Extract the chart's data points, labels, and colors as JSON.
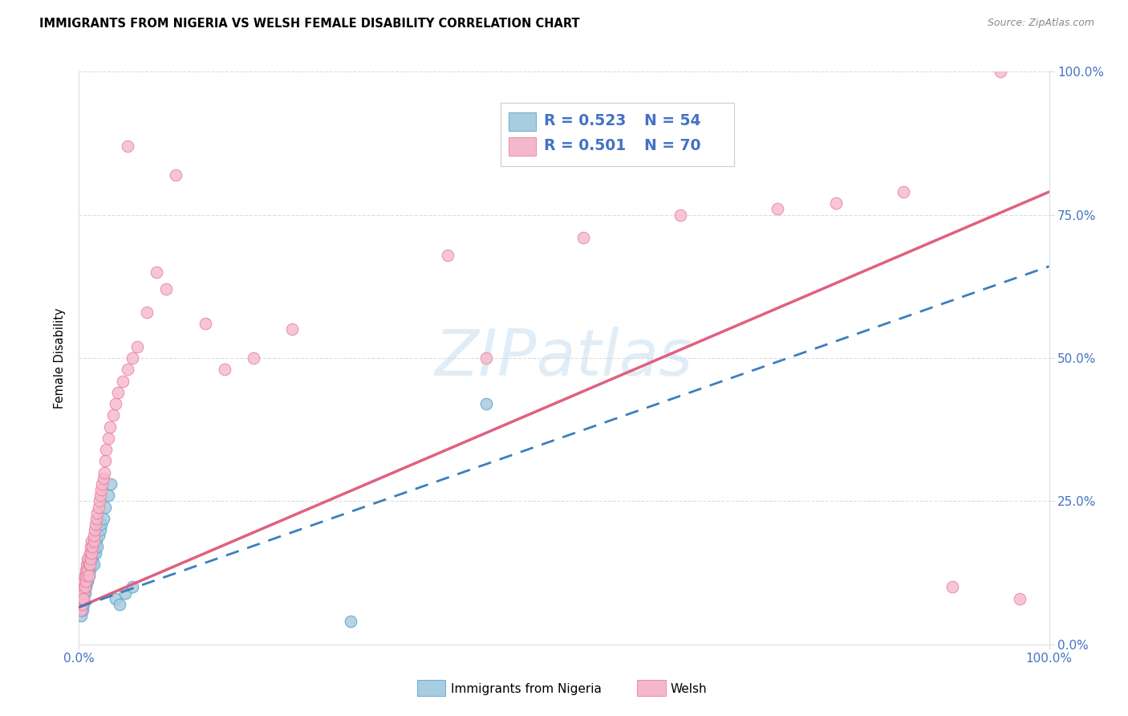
{
  "title": "IMMIGRANTS FROM NIGERIA VS WELSH FEMALE DISABILITY CORRELATION CHART",
  "source": "Source: ZipAtlas.com",
  "ylabel": "Female Disability",
  "xlim": [
    0,
    1.0
  ],
  "ylim": [
    0,
    1.0
  ],
  "ytick_positions": [
    0.0,
    0.25,
    0.5,
    0.75,
    1.0
  ],
  "ytick_labels": [
    "0.0%",
    "25.0%",
    "50.0%",
    "75.0%",
    "100.0%"
  ],
  "xtick_positions": [
    0.0,
    1.0
  ],
  "xtick_labels": [
    "0.0%",
    "100.0%"
  ],
  "legend_labels": [
    "Immigrants from Nigeria",
    "Welsh"
  ],
  "blue_fill_color": "#a8cce0",
  "blue_edge_color": "#5ba3c9",
  "blue_line_color": "#3a7fbf",
  "pink_fill_color": "#f5b8cb",
  "pink_edge_color": "#e87fa0",
  "pink_line_color": "#e0607e",
  "tick_label_color": "#4472c4",
  "R_blue": 0.523,
  "N_blue": 54,
  "R_pink": 0.501,
  "N_pink": 70,
  "watermark": "ZIPatlas",
  "blue_scatter_x": [
    0.001,
    0.002,
    0.002,
    0.003,
    0.003,
    0.003,
    0.004,
    0.004,
    0.004,
    0.004,
    0.005,
    0.005,
    0.005,
    0.005,
    0.006,
    0.006,
    0.006,
    0.007,
    0.007,
    0.007,
    0.008,
    0.008,
    0.009,
    0.009,
    0.009,
    0.01,
    0.01,
    0.01,
    0.011,
    0.011,
    0.012,
    0.012,
    0.013,
    0.013,
    0.014,
    0.015,
    0.015,
    0.016,
    0.017,
    0.018,
    0.019,
    0.02,
    0.022,
    0.023,
    0.025,
    0.027,
    0.03,
    0.033,
    0.038,
    0.042,
    0.048,
    0.055,
    0.28,
    0.42
  ],
  "blue_scatter_y": [
    0.06,
    0.05,
    0.07,
    0.06,
    0.08,
    0.07,
    0.07,
    0.09,
    0.08,
    0.06,
    0.09,
    0.08,
    0.1,
    0.07,
    0.1,
    0.09,
    0.11,
    0.1,
    0.12,
    0.11,
    0.11,
    0.13,
    0.12,
    0.14,
    0.11,
    0.13,
    0.15,
    0.12,
    0.14,
    0.13,
    0.15,
    0.14,
    0.16,
    0.14,
    0.15,
    0.16,
    0.14,
    0.17,
    0.16,
    0.18,
    0.17,
    0.19,
    0.2,
    0.21,
    0.22,
    0.24,
    0.26,
    0.28,
    0.08,
    0.07,
    0.09,
    0.1,
    0.04,
    0.42
  ],
  "pink_scatter_x": [
    0.001,
    0.002,
    0.002,
    0.003,
    0.003,
    0.004,
    0.004,
    0.005,
    0.005,
    0.005,
    0.006,
    0.006,
    0.007,
    0.007,
    0.008,
    0.008,
    0.009,
    0.009,
    0.01,
    0.01,
    0.011,
    0.011,
    0.012,
    0.012,
    0.013,
    0.013,
    0.014,
    0.015,
    0.015,
    0.016,
    0.017,
    0.018,
    0.019,
    0.02,
    0.021,
    0.022,
    0.023,
    0.024,
    0.025,
    0.026,
    0.027,
    0.028,
    0.03,
    0.032,
    0.035,
    0.038,
    0.04,
    0.045,
    0.05,
    0.055,
    0.06,
    0.07,
    0.08,
    0.09,
    0.1,
    0.13,
    0.15,
    0.18,
    0.22,
    0.38,
    0.52,
    0.62,
    0.72,
    0.78,
    0.85,
    0.9,
    0.95,
    0.97,
    0.42,
    0.05
  ],
  "pink_scatter_y": [
    0.07,
    0.06,
    0.08,
    0.07,
    0.09,
    0.08,
    0.1,
    0.09,
    0.08,
    0.11,
    0.1,
    0.12,
    0.11,
    0.13,
    0.12,
    0.14,
    0.13,
    0.15,
    0.14,
    0.12,
    0.16,
    0.14,
    0.15,
    0.17,
    0.16,
    0.18,
    0.17,
    0.18,
    0.19,
    0.2,
    0.21,
    0.22,
    0.23,
    0.24,
    0.25,
    0.26,
    0.27,
    0.28,
    0.29,
    0.3,
    0.32,
    0.34,
    0.36,
    0.38,
    0.4,
    0.42,
    0.44,
    0.46,
    0.48,
    0.5,
    0.52,
    0.58,
    0.65,
    0.62,
    0.82,
    0.56,
    0.48,
    0.5,
    0.55,
    0.68,
    0.71,
    0.75,
    0.76,
    0.77,
    0.79,
    0.1,
    1.0,
    0.08,
    0.5,
    0.87
  ],
  "blue_line_x": [
    0.0,
    1.0
  ],
  "blue_line_y": [
    0.065,
    0.66
  ],
  "pink_line_x": [
    0.0,
    1.0
  ],
  "pink_line_y": [
    0.065,
    0.79
  ],
  "grid_color": "#dddddd",
  "spine_color": "#dddddd"
}
